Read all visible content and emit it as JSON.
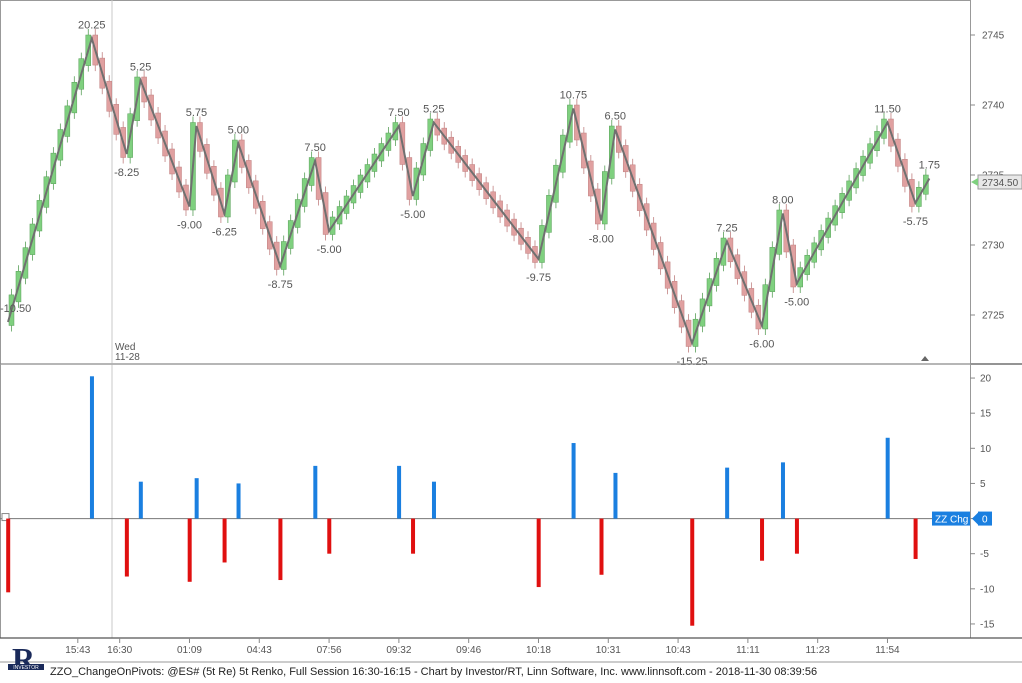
{
  "chart_data": [
    {
      "type": "candlestick-renko-zigzag",
      "ylim": [
        2721.5,
        2747.5
      ],
      "y_ticks": [
        2725,
        2730,
        2735,
        2740,
        2745
      ],
      "last_price": "2734.50",
      "day_marker": {
        "label_line1": "Wed",
        "label_line2": "11-28"
      },
      "zigzag": [
        {
          "x": 0,
          "y": 2724.5,
          "label": "-10.50"
        },
        {
          "x": 12,
          "y": 2744.75,
          "label": "20.25"
        },
        {
          "x": 17,
          "y": 2736.5,
          "label": "-8.25"
        },
        {
          "x": 19,
          "y": 2741.75,
          "label": "5.25"
        },
        {
          "x": 26,
          "y": 2732.75,
          "label": "-9.00"
        },
        {
          "x": 27,
          "y": 2738.5,
          "label": "5.75"
        },
        {
          "x": 31,
          "y": 2732.25,
          "label": "-6.25"
        },
        {
          "x": 33,
          "y": 2737.25,
          "label": "5.00"
        },
        {
          "x": 39,
          "y": 2728.5,
          "label": "-8.75"
        },
        {
          "x": 44,
          "y": 2736.0,
          "label": "7.50"
        },
        {
          "x": 46,
          "y": 2731.0,
          "label": "-5.00"
        },
        {
          "x": 56,
          "y": 2738.5,
          "label": "7.50"
        },
        {
          "x": 58,
          "y": 2733.5,
          "label": "-5.00"
        },
        {
          "x": 61,
          "y": 2738.75,
          "label": "5.25"
        },
        {
          "x": 76,
          "y": 2729.0,
          "label": "-9.75"
        },
        {
          "x": 81,
          "y": 2739.75,
          "label": "10.75"
        },
        {
          "x": 85,
          "y": 2731.75,
          "label": "-8.00"
        },
        {
          "x": 87,
          "y": 2738.25,
          "label": "6.50"
        },
        {
          "x": 98,
          "y": 2723.0,
          "label": "-15.25"
        },
        {
          "x": 103,
          "y": 2730.25,
          "label": "7.25"
        },
        {
          "x": 108,
          "y": 2724.25,
          "label": "-6.00"
        },
        {
          "x": 111,
          "y": 2732.25,
          "label": "8.00"
        },
        {
          "x": 113,
          "y": 2727.25,
          "label": "-5.00"
        },
        {
          "x": 126,
          "y": 2738.75,
          "label": "11.50"
        },
        {
          "x": 130,
          "y": 2733.0,
          "label": "-5.75"
        },
        {
          "x": 132,
          "y": 2734.75,
          "label": "1.75"
        }
      ],
      "x_ticks": [
        {
          "x": 10,
          "label": "15:43"
        },
        {
          "x": 16,
          "label": "16:30"
        },
        {
          "x": 26,
          "label": "01:09"
        },
        {
          "x": 36,
          "label": "04:43"
        },
        {
          "x": 46,
          "label": "07:56"
        },
        {
          "x": 56,
          "label": "09:32"
        },
        {
          "x": 66,
          "label": "09:46"
        },
        {
          "x": 76,
          "label": "10:18"
        },
        {
          "x": 86,
          "label": "10:31"
        },
        {
          "x": 96,
          "label": "10:43"
        },
        {
          "x": 106,
          "label": "11:11"
        },
        {
          "x": 116,
          "label": "11:23"
        },
        {
          "x": 126,
          "label": "11:54"
        }
      ],
      "up_color": "#7fd07f",
      "down_color": "#e0a0a0",
      "zigzag_color": "#707070"
    },
    {
      "type": "bar",
      "indicator_label": "ZZ Chg",
      "indicator_value": "0",
      "ylim": [
        -17,
        22
      ],
      "y_ticks": [
        -15,
        -10,
        -5,
        0,
        5,
        10,
        15,
        20
      ],
      "positive_color": "#1a7fe0",
      "negative_color": "#e01010",
      "bars": [
        {
          "x": 0,
          "value": -10.5
        },
        {
          "x": 12,
          "value": 20.25
        },
        {
          "x": 17,
          "value": -8.25
        },
        {
          "x": 19,
          "value": 5.25
        },
        {
          "x": 26,
          "value": -9.0
        },
        {
          "x": 27,
          "value": 5.75
        },
        {
          "x": 31,
          "value": -6.25
        },
        {
          "x": 33,
          "value": 5.0
        },
        {
          "x": 39,
          "value": -8.75
        },
        {
          "x": 44,
          "value": 7.5
        },
        {
          "x": 46,
          "value": -5.0
        },
        {
          "x": 56,
          "value": 7.5
        },
        {
          "x": 58,
          "value": -5.0
        },
        {
          "x": 61,
          "value": 5.25
        },
        {
          "x": 76,
          "value": -9.75
        },
        {
          "x": 81,
          "value": 10.75
        },
        {
          "x": 85,
          "value": -8.0
        },
        {
          "x": 87,
          "value": 6.5
        },
        {
          "x": 98,
          "value": -15.25
        },
        {
          "x": 103,
          "value": 7.25
        },
        {
          "x": 108,
          "value": -6.0
        },
        {
          "x": 111,
          "value": 8.0
        },
        {
          "x": 113,
          "value": -5.0
        },
        {
          "x": 126,
          "value": 11.5
        },
        {
          "x": 130,
          "value": -5.75
        }
      ]
    }
  ],
  "footer": {
    "text": "ZZO_ChangeOnPivots: @ES# (5t Re) 5t Renko, Full Session 16:30-16:15 - Chart by Investor/RT, Linn Software, Inc. www.linnsoft.com - 2018-11-30 08:39:56"
  },
  "logo": {
    "icon": "investor-rt-logo-icon",
    "text": "INVESTOR",
    "color": "#1a2a5a"
  }
}
